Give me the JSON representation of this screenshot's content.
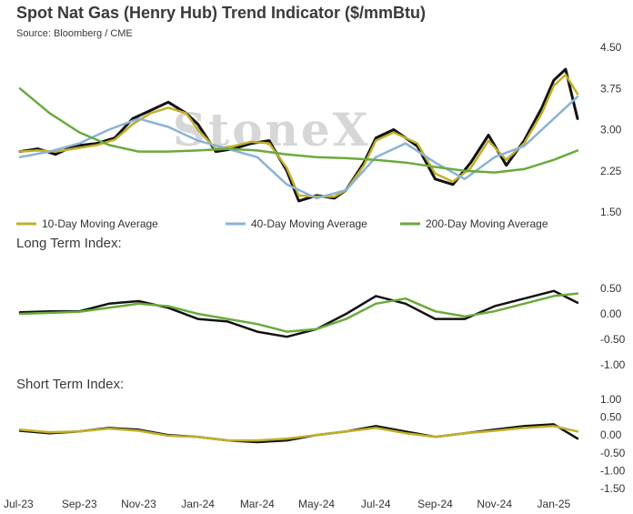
{
  "title": "Spot Nat Gas (Henry Hub) Trend Indicator ($/mmBtu)",
  "source": "Source: Bloomberg / CME",
  "watermark": "StoneX",
  "colors": {
    "price": "#111111",
    "ma10": "#c2b02a",
    "ma40": "#8bb3d6",
    "ma200": "#6aaa3e",
    "index_ma": "#6aaa3e"
  },
  "chart_data": [
    {
      "type": "line",
      "title": "Spot Nat Gas (Henry Hub) Trend Indicator ($/mmBtu)",
      "x_labels": [
        "Jul-23",
        "Sep-23",
        "Nov-23",
        "Jan-24",
        "Mar-24",
        "May-24",
        "Jul-24",
        "Sep-24",
        "Nov-24",
        "Jan-25"
      ],
      "ylim": [
        1.5,
        4.5
      ],
      "yticks": [
        "4.50",
        "3.75",
        "3.00",
        "2.25",
        "1.50"
      ],
      "series": [
        {
          "name": "",
          "color": "#111111",
          "x": [
            0,
            0.3,
            0.6,
            0.9,
            1.3,
            1.6,
            1.9,
            2.2,
            2.5,
            2.8,
            3.0,
            3.3,
            3.6,
            3.9,
            4.2,
            4.5,
            4.7,
            5.0,
            5.3,
            5.5,
            5.8,
            6.0,
            6.3,
            6.7,
            7.0,
            7.3,
            7.6,
            7.9,
            8.2,
            8.5,
            8.8,
            9.0,
            9.2,
            9.4
          ],
          "values": [
            2.6,
            2.65,
            2.55,
            2.7,
            2.75,
            2.85,
            3.2,
            3.35,
            3.5,
            3.3,
            3.1,
            2.6,
            2.65,
            2.75,
            2.8,
            2.25,
            1.7,
            1.8,
            1.75,
            1.9,
            2.4,
            2.85,
            3.0,
            2.7,
            2.1,
            2.0,
            2.4,
            2.9,
            2.35,
            2.8,
            3.4,
            3.9,
            4.1,
            3.2
          ]
        },
        {
          "name": "10-Day Moving Average",
          "color": "#c2b02a",
          "x": [
            0,
            0.3,
            0.6,
            0.9,
            1.3,
            1.6,
            1.9,
            2.2,
            2.5,
            2.8,
            3.0,
            3.3,
            3.6,
            3.9,
            4.2,
            4.5,
            4.7,
            5.0,
            5.3,
            5.5,
            5.8,
            6.0,
            6.3,
            6.7,
            7.0,
            7.3,
            7.6,
            7.9,
            8.2,
            8.5,
            8.8,
            9.0,
            9.2,
            9.4
          ],
          "values": [
            2.6,
            2.62,
            2.6,
            2.65,
            2.72,
            2.82,
            3.1,
            3.3,
            3.4,
            3.3,
            3.0,
            2.65,
            2.7,
            2.78,
            2.75,
            2.3,
            1.8,
            1.78,
            1.78,
            1.9,
            2.35,
            2.8,
            2.95,
            2.75,
            2.2,
            2.05,
            2.3,
            2.8,
            2.45,
            2.75,
            3.3,
            3.8,
            4.0,
            3.65
          ]
        },
        {
          "name": "40-Day Moving Average",
          "color": "#8bb3d6",
          "x": [
            0,
            0.5,
            1.0,
            1.5,
            2.0,
            2.5,
            3.0,
            3.5,
            4.0,
            4.5,
            5.0,
            5.5,
            6.0,
            6.5,
            7.0,
            7.5,
            8.0,
            8.5,
            9.0,
            9.4
          ],
          "values": [
            2.5,
            2.6,
            2.75,
            3.0,
            3.2,
            3.05,
            2.8,
            2.65,
            2.5,
            2.0,
            1.75,
            1.9,
            2.5,
            2.75,
            2.4,
            2.1,
            2.5,
            2.7,
            3.2,
            3.6
          ]
        },
        {
          "name": "200-Day Moving Average",
          "color": "#6aaa3e",
          "x": [
            0,
            0.5,
            1.0,
            1.5,
            2.0,
            2.5,
            3.0,
            3.5,
            4.0,
            4.5,
            5.0,
            5.5,
            6.0,
            6.5,
            7.0,
            7.5,
            8.0,
            8.5,
            9.0,
            9.4
          ],
          "values": [
            3.75,
            3.3,
            2.95,
            2.72,
            2.6,
            2.6,
            2.62,
            2.65,
            2.62,
            2.55,
            2.5,
            2.48,
            2.45,
            2.4,
            2.32,
            2.25,
            2.22,
            2.28,
            2.45,
            2.62
          ]
        }
      ]
    },
    {
      "type": "line",
      "title": "Long Term Index:",
      "ylim": [
        -1.0,
        0.5
      ],
      "yticks": [
        "0.50",
        "0.00",
        "-0.50",
        "-1.00"
      ],
      "series": [
        {
          "name": "",
          "color": "#111111",
          "x": [
            0,
            0.5,
            1.0,
            1.5,
            2.0,
            2.5,
            3.0,
            3.5,
            4.0,
            4.5,
            5.0,
            5.5,
            6.0,
            6.5,
            7.0,
            7.5,
            8.0,
            8.5,
            9.0,
            9.4
          ],
          "values": [
            0.03,
            0.05,
            0.05,
            0.2,
            0.25,
            0.12,
            -0.1,
            -0.15,
            -0.35,
            -0.45,
            -0.3,
            0.0,
            0.35,
            0.2,
            -0.1,
            -0.1,
            0.15,
            0.3,
            0.45,
            0.22
          ]
        },
        {
          "name": "",
          "color": "#6aaa3e",
          "x": [
            0,
            0.5,
            1.0,
            1.5,
            2.0,
            2.5,
            3.0,
            3.5,
            4.0,
            4.5,
            5.0,
            5.5,
            6.0,
            6.5,
            7.0,
            7.5,
            8.0,
            8.5,
            9.0,
            9.4
          ],
          "values": [
            0.0,
            0.02,
            0.04,
            0.12,
            0.2,
            0.15,
            0.0,
            -0.1,
            -0.2,
            -0.35,
            -0.3,
            -0.1,
            0.2,
            0.3,
            0.05,
            -0.05,
            0.05,
            0.2,
            0.35,
            0.4
          ]
        }
      ]
    },
    {
      "type": "line",
      "title": "Short Term Index:",
      "ylim": [
        -1.5,
        1.0
      ],
      "yticks": [
        "1.00",
        "0.50",
        "0.00",
        "-0.50",
        "-1.00",
        "-1.50"
      ],
      "series": [
        {
          "name": "",
          "color": "#111111",
          "x": [
            0,
            0.5,
            1.0,
            1.5,
            2.0,
            2.5,
            3.0,
            3.5,
            4.0,
            4.5,
            5.0,
            5.5,
            6.0,
            6.5,
            7.0,
            7.5,
            8.0,
            8.5,
            9.0,
            9.4
          ],
          "values": [
            0.12,
            0.05,
            0.1,
            0.2,
            0.15,
            0.0,
            -0.05,
            -0.15,
            -0.2,
            -0.15,
            0.0,
            0.1,
            0.25,
            0.1,
            -0.05,
            0.05,
            0.15,
            0.25,
            0.3,
            -0.1
          ]
        },
        {
          "name": "",
          "color": "#c2b02a",
          "x": [
            0,
            0.5,
            1.0,
            1.5,
            2.0,
            2.5,
            3.0,
            3.5,
            4.0,
            4.5,
            5.0,
            5.5,
            6.0,
            6.5,
            7.0,
            7.5,
            8.0,
            8.5,
            9.0,
            9.4
          ],
          "values": [
            0.15,
            0.08,
            0.1,
            0.18,
            0.12,
            -0.02,
            -0.05,
            -0.15,
            -0.15,
            -0.1,
            0.0,
            0.1,
            0.2,
            0.05,
            -0.05,
            0.05,
            0.12,
            0.2,
            0.25,
            0.1
          ]
        }
      ]
    }
  ]
}
